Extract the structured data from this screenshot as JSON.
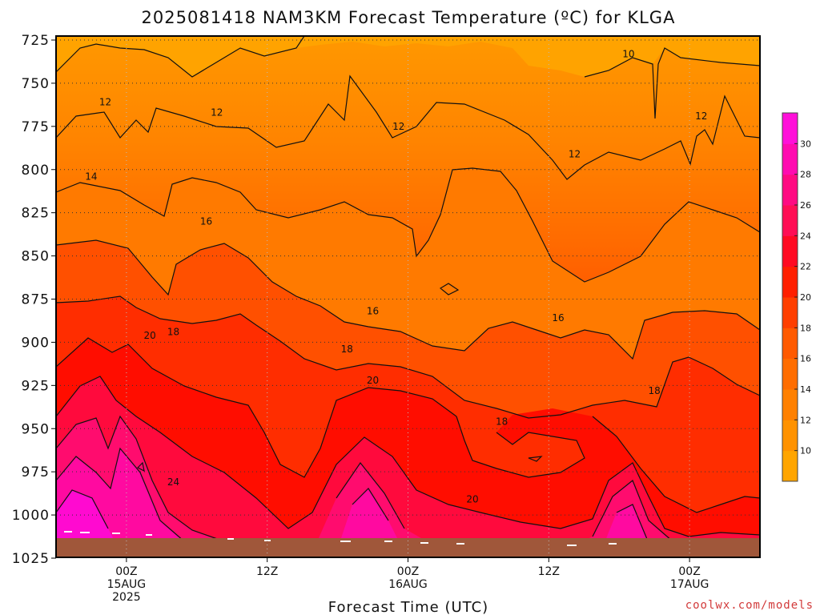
{
  "chart_data": {
    "type": "heatmap",
    "title": "2025081418 NAM3KM Forecast Temperature (ºC) for KLGA",
    "xlabel": "Forecast Time (UTC)",
    "ylabel": "",
    "x_ticks": [
      {
        "hour": 6,
        "lines": [
          "00Z",
          "15AUG",
          "2025"
        ]
      },
      {
        "hour": 18,
        "lines": [
          "12Z"
        ]
      },
      {
        "hour": 30,
        "lines": [
          "00Z",
          "16AUG"
        ]
      },
      {
        "hour": 42,
        "lines": [
          "12Z"
        ]
      },
      {
        "hour": 54,
        "lines": [
          "00Z",
          "17AUG"
        ]
      }
    ],
    "xlim": [
      0,
      60
    ],
    "y_ticks": [
      725,
      750,
      775,
      800,
      825,
      850,
      875,
      900,
      925,
      950,
      975,
      1000,
      1025
    ],
    "ylim": [
      1025,
      720
    ],
    "y_unit": "hPa",
    "grid": true,
    "colorbar": {
      "labels": [
        10,
        12,
        14,
        16,
        18,
        20,
        22,
        24,
        26,
        28,
        30
      ],
      "range": [
        8,
        32
      ],
      "colors": [
        "#ffa500",
        "#ff9200",
        "#ff8000",
        "#ff6d00",
        "#ff5a00",
        "#ff3f00",
        "#ff1f00",
        "#ff0a22",
        "#ff0e55",
        "#ff0a82",
        "#ff0bb0",
        "#ff10d9"
      ]
    },
    "contour_labels": [
      {
        "text": "10",
        "hour": 48.8,
        "pressure": 733
      },
      {
        "text": "12",
        "hour": 4.2,
        "pressure": 761
      },
      {
        "text": "12",
        "hour": 13.7,
        "pressure": 767
      },
      {
        "text": "12",
        "hour": 29.2,
        "pressure": 775
      },
      {
        "text": "12",
        "hour": 44.2,
        "pressure": 791
      },
      {
        "text": "12",
        "hour": 55.0,
        "pressure": 769
      },
      {
        "text": "14",
        "hour": 3.0,
        "pressure": 804
      },
      {
        "text": "16",
        "hour": 12.8,
        "pressure": 830
      },
      {
        "text": "16",
        "hour": 27.0,
        "pressure": 882
      },
      {
        "text": "16",
        "hour": 42.8,
        "pressure": 886
      },
      {
        "text": "18",
        "hour": 10.0,
        "pressure": 894
      },
      {
        "text": "18",
        "hour": 24.8,
        "pressure": 904
      },
      {
        "text": "18",
        "hour": 38.0,
        "pressure": 946
      },
      {
        "text": "18",
        "hour": 51.0,
        "pressure": 928
      },
      {
        "text": "20",
        "hour": 8.0,
        "pressure": 896
      },
      {
        "text": "20",
        "hour": 27.0,
        "pressure": 922
      },
      {
        "text": "20",
        "hour": 35.5,
        "pressure": 991
      },
      {
        "text": "24",
        "hour": 10.0,
        "pressure": 981
      }
    ],
    "ground_color": "#a0573a"
  },
  "credit": "coolwx.com/models"
}
